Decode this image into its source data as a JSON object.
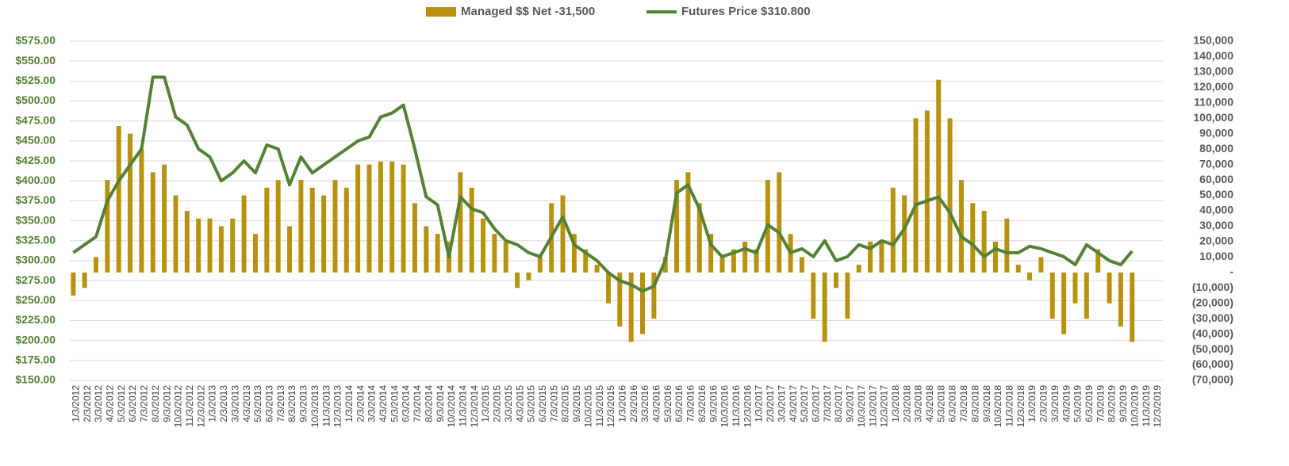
{
  "chart_data": {
    "type": "bar-line",
    "categories": [
      "1/3/2012",
      "2/3/2012",
      "3/3/2012",
      "4/3/2012",
      "5/3/2012",
      "6/3/2012",
      "7/3/2012",
      "8/3/2012",
      "9/3/2012",
      "10/3/2012",
      "11/3/2012",
      "12/3/2012",
      "1/3/2013",
      "2/3/2013",
      "3/3/2013",
      "4/3/2013",
      "5/3/2013",
      "6/3/2013",
      "7/3/2013",
      "8/3/2013",
      "9/3/2013",
      "10/3/2013",
      "11/3/2013",
      "12/3/2013",
      "1/3/2014",
      "2/3/2014",
      "3/3/2014",
      "4/3/2014",
      "5/3/2014",
      "6/3/2014",
      "7/3/2014",
      "8/3/2014",
      "9/3/2014",
      "10/3/2014",
      "11/3/2014",
      "12/3/2014",
      "1/3/2015",
      "2/3/2015",
      "3/3/2015",
      "4/3/2015",
      "5/3/2015",
      "6/3/2015",
      "7/3/2015",
      "8/3/2015",
      "9/3/2015",
      "10/3/2015",
      "11/3/2015",
      "12/3/2015",
      "1/3/2016",
      "2/3/2016",
      "3/3/2016",
      "4/3/2016",
      "5/3/2016",
      "6/3/2016",
      "7/3/2016",
      "8/3/2016",
      "9/3/2016",
      "10/3/2016",
      "11/3/2016",
      "12/3/2016",
      "1/3/2017",
      "2/3/2017",
      "3/3/2017",
      "4/3/2017",
      "5/3/2017",
      "6/3/2017",
      "7/3/2017",
      "8/3/2017",
      "9/3/2017",
      "10/3/2017",
      "11/3/2017",
      "12/3/2017",
      "1/3/2018",
      "2/3/2018",
      "3/3/2018",
      "4/3/2018",
      "5/3/2018",
      "6/3/2018",
      "7/3/2018",
      "8/3/2018",
      "9/3/2018",
      "10/3/2018",
      "11/3/2018",
      "12/3/2018",
      "1/3/2019",
      "2/3/2019",
      "3/3/2019",
      "4/3/2019",
      "5/3/2019",
      "6/3/2019",
      "7/3/2019",
      "8/3/2019",
      "9/3/2019",
      "10/3/2019",
      "11/3/2019",
      "12/3/2019"
    ],
    "series": [
      {
        "name": "Managed $$ Net -31,500",
        "type": "bar",
        "axis": "y2",
        "color": "#b8920f",
        "values": [
          -15000,
          -10000,
          10000,
          60000,
          95000,
          90000,
          80000,
          65000,
          70000,
          50000,
          40000,
          35000,
          35000,
          30000,
          35000,
          50000,
          25000,
          55000,
          60000,
          30000,
          60000,
          55000,
          50000,
          60000,
          55000,
          70000,
          70000,
          72000,
          72000,
          70000,
          45000,
          30000,
          25000,
          20000,
          65000,
          55000,
          35000,
          25000,
          20000,
          -10000,
          -5000,
          10000,
          45000,
          50000,
          25000,
          15000,
          5000,
          -20000,
          -35000,
          -45000,
          -40000,
          -30000,
          10000,
          60000,
          65000,
          45000,
          25000,
          10000,
          15000,
          20000,
          15000,
          60000,
          65000,
          25000,
          10000,
          -30000,
          -45000,
          -10000,
          -30000,
          5000,
          20000,
          20000,
          55000,
          50000,
          100000,
          105000,
          125000,
          100000,
          60000,
          45000,
          40000,
          20000,
          35000,
          5000,
          -5000,
          10000,
          -30000,
          -40000,
          -20000,
          -30000,
          15000,
          -20000,
          -35000,
          -45000,
          null,
          null
        ]
      },
      {
        "name": "Futures Price $310.800",
        "type": "line",
        "axis": "y",
        "color": "#548235",
        "values": [
          310,
          320,
          330,
          375,
          400,
          420,
          440,
          530,
          530,
          480,
          470,
          440,
          430,
          400,
          410,
          425,
          410,
          445,
          440,
          395,
          430,
          410,
          420,
          430,
          440,
          450,
          455,
          480,
          485,
          495,
          440,
          380,
          370,
          305,
          380,
          365,
          360,
          340,
          325,
          320,
          310,
          305,
          330,
          355,
          320,
          310,
          300,
          285,
          275,
          270,
          262,
          268,
          300,
          385,
          395,
          365,
          320,
          305,
          310,
          315,
          310,
          345,
          335,
          310,
          315,
          305,
          325,
          300,
          305,
          320,
          315,
          325,
          320,
          340,
          370,
          375,
          380,
          360,
          330,
          320,
          305,
          315,
          310,
          310,
          318,
          315,
          310,
          305,
          295,
          320,
          310,
          300,
          295,
          312,
          null,
          null
        ]
      }
    ],
    "ylim": [
      150,
      575
    ],
    "yticks": [
      {
        "value": 150,
        "label": "$150.00"
      },
      {
        "value": 175,
        "label": "$175.00"
      },
      {
        "value": 200,
        "label": "$200.00"
      },
      {
        "value": 225,
        "label": "$225.00"
      },
      {
        "value": 250,
        "label": "$250.00"
      },
      {
        "value": 275,
        "label": "$275.00"
      },
      {
        "value": 300,
        "label": "$300.00"
      },
      {
        "value": 325,
        "label": "$325.00"
      },
      {
        "value": 350,
        "label": "$350.00"
      },
      {
        "value": 375,
        "label": "$375.00"
      },
      {
        "value": 400,
        "label": "$400.00"
      },
      {
        "value": 425,
        "label": "$425.00"
      },
      {
        "value": 450,
        "label": "$450.00"
      },
      {
        "value": 475,
        "label": "$475.00"
      },
      {
        "value": 500,
        "label": "$500.00"
      },
      {
        "value": 525,
        "label": "$525.00"
      },
      {
        "value": 550,
        "label": "$550.00"
      },
      {
        "value": 575,
        "label": "$575.00"
      }
    ],
    "y2lim": [
      -70000,
      150000
    ],
    "y2ticks": [
      {
        "value": -70000,
        "label": "(70,000)"
      },
      {
        "value": -60000,
        "label": "(60,000)"
      },
      {
        "value": -50000,
        "label": "(50,000)"
      },
      {
        "value": -40000,
        "label": "(40,000)"
      },
      {
        "value": -30000,
        "label": "(30,000)"
      },
      {
        "value": -20000,
        "label": "(20,000)"
      },
      {
        "value": -10000,
        "label": "(10,000)"
      },
      {
        "value": 0,
        "label": "-"
      },
      {
        "value": 10000,
        "label": "10,000"
      },
      {
        "value": 20000,
        "label": "20,000"
      },
      {
        "value": 30000,
        "label": "30,000"
      },
      {
        "value": 40000,
        "label": "40,000"
      },
      {
        "value": 50000,
        "label": "50,000"
      },
      {
        "value": 60000,
        "label": "60,000"
      },
      {
        "value": 70000,
        "label": "70,000"
      },
      {
        "value": 80000,
        "label": "80,000"
      },
      {
        "value": 90000,
        "label": "90,000"
      },
      {
        "value": 100000,
        "label": "100,000"
      },
      {
        "value": 110000,
        "label": "110,000"
      },
      {
        "value": 120000,
        "label": "120,000"
      },
      {
        "value": 130000,
        "label": "130,000"
      },
      {
        "value": 140000,
        "label": "140,000"
      },
      {
        "value": 150000,
        "label": "150,000"
      }
    ],
    "grid": true,
    "legend": "top"
  }
}
